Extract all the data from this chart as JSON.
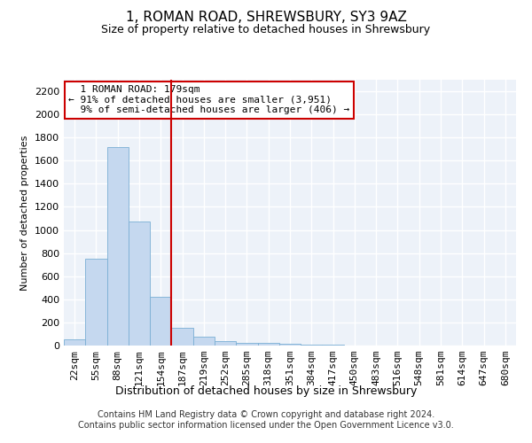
{
  "title": "1, ROMAN ROAD, SHREWSBURY, SY3 9AZ",
  "subtitle": "Size of property relative to detached houses in Shrewsbury",
  "xlabel": "Distribution of detached houses by size in Shrewsbury",
  "ylabel": "Number of detached properties",
  "bar_labels": [
    "22sqm",
    "55sqm",
    "88sqm",
    "121sqm",
    "154sqm",
    "187sqm",
    "219sqm",
    "252sqm",
    "285sqm",
    "318sqm",
    "351sqm",
    "384sqm",
    "417sqm",
    "450sqm",
    "483sqm",
    "516sqm",
    "548sqm",
    "581sqm",
    "614sqm",
    "647sqm",
    "680sqm"
  ],
  "bar_values": [
    50,
    750,
    1720,
    1070,
    420,
    150,
    80,
    35,
    25,
    20,
    15,
    5,
    5,
    0,
    0,
    0,
    0,
    0,
    0,
    0,
    0
  ],
  "bar_color": "#c5d8ef",
  "bar_edge_color": "#7aafd4",
  "vline_color": "#cc0000",
  "vline_x_index": 5,
  "annotation_text": "  1 ROMAN ROAD: 179sqm\n← 91% of detached houses are smaller (3,951)\n  9% of semi-detached houses are larger (406) →",
  "annotation_box_edge_color": "#cc0000",
  "ylim": [
    0,
    2300
  ],
  "yticks": [
    0,
    200,
    400,
    600,
    800,
    1000,
    1200,
    1400,
    1600,
    1800,
    2000,
    2200
  ],
  "background_color": "#edf2f9",
  "grid_color": "#ffffff",
  "footer": "Contains HM Land Registry data © Crown copyright and database right 2024.\nContains public sector information licensed under the Open Government Licence v3.0.",
  "title_fontsize": 11,
  "subtitle_fontsize": 9,
  "xlabel_fontsize": 9,
  "ylabel_fontsize": 8,
  "tick_fontsize": 8,
  "annotation_fontsize": 8,
  "footer_fontsize": 7
}
